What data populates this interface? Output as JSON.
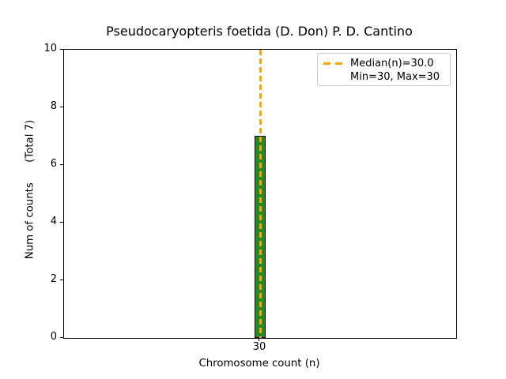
{
  "title": "Pseudocaryopteris foetida (D. Don) P. D. Cantino",
  "axes": {
    "xlabel": "Chromosome count (n)",
    "ylabel_text": "Num of counts      (Total 7)",
    "yticks": [
      "0",
      "2",
      "4",
      "6",
      "8",
      "10"
    ],
    "xtick": "30"
  },
  "legend": {
    "median_label": "Median(n)=30.0",
    "minmax_label": "Min=30, Max=30"
  },
  "colors": {
    "bar_fill": "#228B22",
    "bar_edge": "#000000",
    "median_line": "#FFA500",
    "legend_border": "#cccccc",
    "background": "#ffffff",
    "text": "#000000"
  },
  "chart_data": {
    "type": "bar",
    "title": "Pseudocaryopteris foetida (D. Don) P. D. Cantino",
    "xlabel": "Chromosome count (n)",
    "ylabel": "Num of counts (Total 7)",
    "categories": [
      30
    ],
    "values": [
      7
    ],
    "total_counts": 7,
    "ylim": [
      0,
      10
    ],
    "yticks": [
      0,
      2,
      4,
      6,
      8,
      10
    ],
    "xticks": [
      30
    ],
    "median_n": 30.0,
    "min_n": 30,
    "max_n": 30,
    "legend_entries": [
      "Median(n)=30.0",
      "Min=30, Max=30"
    ],
    "legend_position": "upper right",
    "grid": false,
    "bar_color": "#228B22",
    "bar_edge_color": "#000000",
    "median_line_color": "#FFA500",
    "median_line_style": "dashed"
  }
}
